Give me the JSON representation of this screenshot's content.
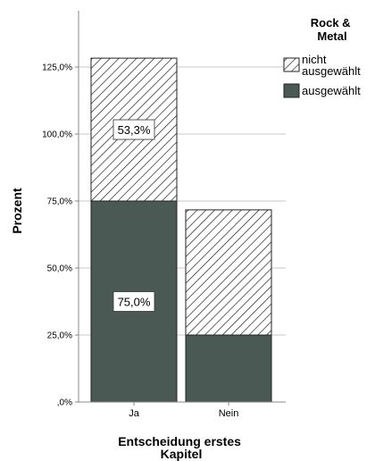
{
  "chart_data": {
    "type": "bar",
    "stacked": true,
    "categories": [
      "Ja",
      "Nein"
    ],
    "series": [
      {
        "name": "ausgewählt",
        "values": [
          75.0,
          25.0
        ],
        "color": "#4a5954",
        "pattern": "solid"
      },
      {
        "name": "nicht ausgewählt",
        "values": [
          53.3,
          46.7
        ],
        "color": "#ffffff",
        "pattern": "hatch"
      }
    ],
    "data_labels": [
      {
        "category": "Ja",
        "series": "nicht ausgewählt",
        "text": "53,3%"
      },
      {
        "category": "Ja",
        "series": "ausgewählt",
        "text": "75,0%"
      }
    ],
    "xlabel": "Entscheidung erstes Kapitel",
    "ylabel": "Prozent",
    "ylim": [
      0,
      145
    ],
    "yticks": [
      0,
      25,
      50,
      75,
      100,
      125
    ],
    "ytick_labels": [
      ",0%",
      "25,0%",
      "50,0%",
      "75,0%",
      "100,0%",
      "125,0%"
    ],
    "grid": true,
    "legend": {
      "title": "Rock & Metal",
      "position": "top-right",
      "entries": [
        {
          "label": "nicht ausgewählt",
          "pattern": "hatch"
        },
        {
          "label": "ausgewählt",
          "pattern": "solid"
        }
      ]
    }
  }
}
